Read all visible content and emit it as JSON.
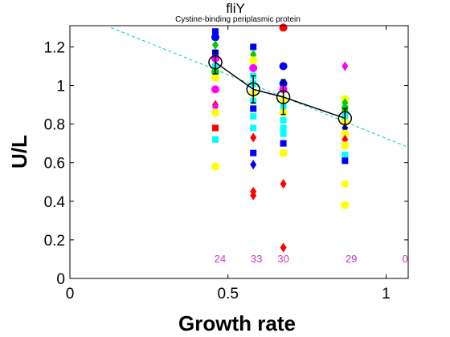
{
  "chart_data": {
    "type": "scatter",
    "title": "fliY",
    "subtitle": "Cystine-binding periplasmic protein",
    "xlabel": "Growth rate",
    "ylabel": "U/L",
    "xlim": [
      0,
      1.07
    ],
    "ylim": [
      0,
      1.31
    ],
    "xticks": [
      0,
      0.5,
      1
    ],
    "xtick_labels": [
      "0",
      "0.5",
      "1"
    ],
    "yticks": [
      0,
      0.2,
      0.4,
      0.6,
      0.8,
      1,
      1.2
    ],
    "ytick_labels": [
      "0",
      "0.2",
      "0.4",
      "0.6",
      "0.8",
      "1",
      "1.2"
    ],
    "grid": false,
    "count_color": "#cc33cc",
    "counts": [
      {
        "x": 0.475,
        "label": "24"
      },
      {
        "x": 0.59,
        "label": "33"
      },
      {
        "x": 0.675,
        "label": "30"
      },
      {
        "x": 0.89,
        "label": "29"
      },
      {
        "x": 1.06,
        "label": "0"
      }
    ],
    "points": [
      {
        "x": 0.46,
        "y": 1.28,
        "shape": "square",
        "color": "#0000ff"
      },
      {
        "x": 0.46,
        "y": 1.25,
        "shape": "circle",
        "color": "#0000ff"
      },
      {
        "x": 0.46,
        "y": 1.21,
        "shape": "diamond",
        "color": "#00cc00"
      },
      {
        "x": 0.46,
        "y": 1.17,
        "shape": "square",
        "color": "#0000ff"
      },
      {
        "x": 0.46,
        "y": 1.14,
        "shape": "circle",
        "color": "#ff00ff"
      },
      {
        "x": 0.46,
        "y": 1.1,
        "shape": "square",
        "color": "#00ffff"
      },
      {
        "x": 0.46,
        "y": 1.07,
        "shape": "circle",
        "color": "#00cc00"
      },
      {
        "x": 0.46,
        "y": 1.04,
        "shape": "circle",
        "color": "#ffff00"
      },
      {
        "x": 0.46,
        "y": 0.98,
        "shape": "circle",
        "color": "#ff00ff"
      },
      {
        "x": 0.46,
        "y": 0.9,
        "shape": "diamond",
        "color": "#ff0000"
      },
      {
        "x": 0.46,
        "y": 0.89,
        "shape": "diamond",
        "color": "#ff00ff"
      },
      {
        "x": 0.46,
        "y": 0.86,
        "shape": "circle",
        "color": "#ffff00"
      },
      {
        "x": 0.46,
        "y": 0.78,
        "shape": "square",
        "color": "#ff0000"
      },
      {
        "x": 0.46,
        "y": 0.72,
        "shape": "square",
        "color": "#00ffff"
      },
      {
        "x": 0.46,
        "y": 0.58,
        "shape": "circle",
        "color": "#ffff00"
      },
      {
        "x": 0.58,
        "y": 1.2,
        "shape": "square",
        "color": "#0000ff"
      },
      {
        "x": 0.58,
        "y": 1.16,
        "shape": "diamond",
        "color": "#00cc00"
      },
      {
        "x": 0.58,
        "y": 1.13,
        "shape": "circle",
        "color": "#ffff00"
      },
      {
        "x": 0.58,
        "y": 1.09,
        "shape": "circle",
        "color": "#ff00ff"
      },
      {
        "x": 0.58,
        "y": 1.05,
        "shape": "square",
        "color": "#00ffff"
      },
      {
        "x": 0.58,
        "y": 1.01,
        "shape": "square",
        "color": "#00ffff"
      },
      {
        "x": 0.58,
        "y": 0.96,
        "shape": "circle",
        "color": "#ffff00"
      },
      {
        "x": 0.58,
        "y": 0.92,
        "shape": "square",
        "color": "#00ffff"
      },
      {
        "x": 0.58,
        "y": 0.88,
        "shape": "square",
        "color": "#0000ff"
      },
      {
        "x": 0.58,
        "y": 0.84,
        "shape": "square",
        "color": "#00ffff"
      },
      {
        "x": 0.58,
        "y": 0.78,
        "shape": "square",
        "color": "#00ffff"
      },
      {
        "x": 0.58,
        "y": 0.73,
        "shape": "diamond",
        "color": "#ff0000"
      },
      {
        "x": 0.58,
        "y": 0.65,
        "shape": "square",
        "color": "#0000ff"
      },
      {
        "x": 0.58,
        "y": 0.59,
        "shape": "diamond",
        "color": "#0000ff"
      },
      {
        "x": 0.58,
        "y": 0.45,
        "shape": "diamond",
        "color": "#ff0000"
      },
      {
        "x": 0.58,
        "y": 0.43,
        "shape": "diamond",
        "color": "#ff0000"
      },
      {
        "x": 0.675,
        "y": 1.3,
        "shape": "circle",
        "color": "#ff0000"
      },
      {
        "x": 0.675,
        "y": 1.1,
        "shape": "circle",
        "color": "#0000ff"
      },
      {
        "x": 0.675,
        "y": 1.01,
        "shape": "circle",
        "color": "#0000ff"
      },
      {
        "x": 0.675,
        "y": 0.98,
        "shape": "circle",
        "color": "#ff00ff"
      },
      {
        "x": 0.675,
        "y": 0.93,
        "shape": "circle",
        "color": "#ffff00"
      },
      {
        "x": 0.675,
        "y": 0.89,
        "shape": "square",
        "color": "#00ffff"
      },
      {
        "x": 0.675,
        "y": 0.86,
        "shape": "circle",
        "color": "#ffff00"
      },
      {
        "x": 0.675,
        "y": 0.82,
        "shape": "square",
        "color": "#00ffff"
      },
      {
        "x": 0.675,
        "y": 0.78,
        "shape": "square",
        "color": "#00ffff"
      },
      {
        "x": 0.675,
        "y": 0.75,
        "shape": "square",
        "color": "#00ffff"
      },
      {
        "x": 0.675,
        "y": 0.7,
        "shape": "square",
        "color": "#0000ff"
      },
      {
        "x": 0.675,
        "y": 0.65,
        "shape": "circle",
        "color": "#ffff00"
      },
      {
        "x": 0.675,
        "y": 0.49,
        "shape": "diamond",
        "color": "#ff0000"
      },
      {
        "x": 0.675,
        "y": 0.16,
        "shape": "diamond",
        "color": "#ff0000"
      },
      {
        "x": 0.87,
        "y": 1.1,
        "shape": "diamond",
        "color": "#ff00ff"
      },
      {
        "x": 0.87,
        "y": 0.93,
        "shape": "circle",
        "color": "#ffff00"
      },
      {
        "x": 0.87,
        "y": 0.91,
        "shape": "diamond",
        "color": "#00cc00"
      },
      {
        "x": 0.87,
        "y": 0.88,
        "shape": "square",
        "color": "#00cc00"
      },
      {
        "x": 0.87,
        "y": 0.84,
        "shape": "square",
        "color": "#00ffff"
      },
      {
        "x": 0.87,
        "y": 0.81,
        "shape": "circle",
        "color": "#ffff00"
      },
      {
        "x": 0.87,
        "y": 0.78,
        "shape": "diamond",
        "color": "#0000ff"
      },
      {
        "x": 0.87,
        "y": 0.75,
        "shape": "circle",
        "color": "#ffff00"
      },
      {
        "x": 0.87,
        "y": 0.72,
        "shape": "diamond",
        "color": "#ff0000"
      },
      {
        "x": 0.87,
        "y": 0.69,
        "shape": "circle",
        "color": "#ffff00"
      },
      {
        "x": 0.87,
        "y": 0.64,
        "shape": "square",
        "color": "#00ffff"
      },
      {
        "x": 0.87,
        "y": 0.61,
        "shape": "square",
        "color": "#0000ff"
      },
      {
        "x": 0.87,
        "y": 0.49,
        "shape": "square",
        "color": "#ffff00"
      },
      {
        "x": 0.87,
        "y": 0.38,
        "shape": "circle",
        "color": "#ffff00"
      }
    ],
    "mean_series": {
      "color": "#000000",
      "x": [
        0.46,
        0.58,
        0.675,
        0.87
      ],
      "y": [
        1.12,
        0.98,
        0.94,
        0.83
      ],
      "err": [
        0.06,
        0.07,
        0.09,
        0.05
      ]
    },
    "fit_line": {
      "color": "#00cccc",
      "style": "dashed",
      "x": [
        0.13,
        1.07
      ],
      "y": [
        1.3,
        0.68
      ]
    }
  }
}
